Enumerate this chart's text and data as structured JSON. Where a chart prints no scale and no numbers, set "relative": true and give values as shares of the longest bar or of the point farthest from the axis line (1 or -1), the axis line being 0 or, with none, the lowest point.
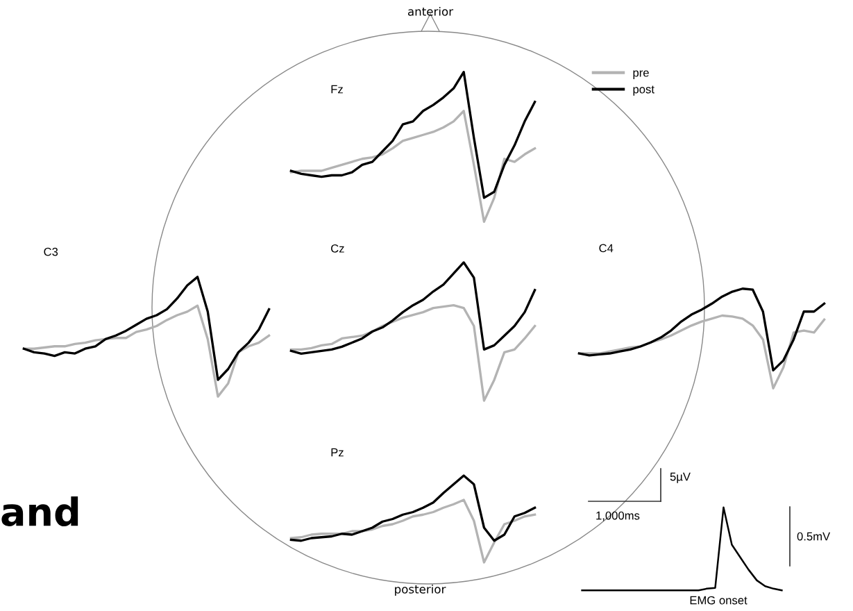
{
  "chart_data": [
    {
      "type": "line",
      "title": "Fz",
      "relative": true,
      "legend": "right",
      "categories": [
        null,
        null,
        null,
        null,
        null,
        null,
        null,
        null,
        null,
        null,
        null,
        null,
        null,
        null,
        null,
        null,
        null,
        null,
        null,
        null,
        null,
        null,
        null,
        null,
        null
      ],
      "series": [
        {
          "name": "pre",
          "color": "#b3b3b3",
          "values": [
            0.33,
            0.34,
            0.34,
            0.34,
            0.36,
            0.38,
            0.4,
            0.42,
            0.43,
            0.45,
            0.49,
            0.54,
            0.56,
            0.58,
            0.6,
            0.63,
            0.67,
            0.74,
            0.38,
            0,
            0.16,
            0.42,
            0.4,
            0.45,
            0.49
          ]
        },
        {
          "name": "post",
          "color": "#000000",
          "values": [
            0.34,
            0.32,
            0.31,
            0.3,
            0.31,
            0.31,
            0.33,
            0.38,
            0.4,
            0.47,
            0.54,
            0.65,
            0.67,
            0.74,
            0.78,
            0.83,
            0.89,
            1.0,
            0.56,
            0.16,
            0.2,
            0.38,
            0.51,
            0.67,
            0.8
          ]
        }
      ]
    },
    {
      "type": "line",
      "title": "C3",
      "relative": true,
      "categories": [
        null,
        null,
        null,
        null,
        null,
        null,
        null,
        null,
        null,
        null,
        null,
        null,
        null,
        null,
        null,
        null,
        null,
        null,
        null,
        null,
        null,
        null,
        null,
        null,
        null
      ],
      "series": [
        {
          "color": "#b3b3b3",
          "values": [
            0.4,
            0.4,
            0.41,
            0.42,
            0.42,
            0.44,
            0.45,
            0.47,
            0.48,
            0.49,
            0.49,
            0.54,
            0.56,
            0.59,
            0.64,
            0.68,
            0.71,
            0.76,
            0.48,
            0,
            0.11,
            0.37,
            0.42,
            0.45,
            0.51
          ]
        },
        {
          "color": "#000000",
          "values": [
            0.4,
            0.37,
            0.36,
            0.34,
            0.37,
            0.36,
            0.4,
            0.42,
            0.48,
            0.51,
            0.55,
            0.6,
            0.65,
            0.68,
            0.73,
            0.82,
            0.93,
            1.0,
            0.71,
            0.14,
            0.23,
            0.37,
            0.45,
            0.56,
            0.73
          ]
        }
      ]
    },
    {
      "type": "line",
      "title": "Cz",
      "relative": true,
      "annotations": [
        "anterior",
        "posterior",
        "and"
      ],
      "categories": [
        null,
        null,
        null,
        null,
        null,
        null,
        null,
        null,
        null,
        null,
        null,
        null,
        null,
        null,
        null,
        null,
        null,
        null,
        null,
        null,
        null,
        null,
        null,
        null,
        null
      ],
      "series": [
        {
          "color": "#b3b3b3",
          "values": [
            0.37,
            0.37,
            0.38,
            0.4,
            0.41,
            0.45,
            0.46,
            0.47,
            0.5,
            0.54,
            0.57,
            0.6,
            0.62,
            0.64,
            0.67,
            0.68,
            0.69,
            0.67,
            0.54,
            0,
            0.15,
            0.35,
            0.37,
            0.45,
            0.54
          ]
        },
        {
          "color": "#000000",
          "values": [
            0.36,
            0.34,
            0.35,
            0.36,
            0.37,
            0.39,
            0.42,
            0.45,
            0.5,
            0.53,
            0.58,
            0.64,
            0.69,
            0.73,
            0.79,
            0.84,
            0.92,
            1.0,
            0.89,
            0.37,
            0.4,
            0.47,
            0.54,
            0.64,
            0.8
          ]
        }
      ]
    },
    {
      "type": "line",
      "title": "C4",
      "relative": true,
      "categories": [
        null,
        null,
        null,
        null,
        null,
        null,
        null,
        null,
        null,
        null,
        null,
        null,
        null,
        null,
        null,
        null,
        null,
        null,
        null,
        null,
        null,
        null,
        null,
        null,
        null
      ],
      "series": [
        {
          "color": "#b3b3b3",
          "values": [
            0.35,
            0.35,
            0.35,
            0.37,
            0.39,
            0.41,
            0.42,
            0.46,
            0.49,
            0.53,
            0.58,
            0.63,
            0.67,
            0.7,
            0.73,
            0.72,
            0.7,
            0.63,
            0.49,
            0,
            0.21,
            0.56,
            0.58,
            0.56,
            0.69
          ]
        },
        {
          "color": "#000000",
          "values": [
            0.35,
            0.33,
            0.34,
            0.35,
            0.37,
            0.39,
            0.42,
            0.46,
            0.51,
            0.58,
            0.67,
            0.74,
            0.79,
            0.85,
            0.92,
            0.97,
            1.0,
            0.99,
            0.77,
            0.18,
            0.28,
            0.49,
            0.77,
            0.77,
            0.85
          ]
        }
      ]
    },
    {
      "type": "line",
      "title": "Pz",
      "relative": true,
      "categories": [
        null,
        null,
        null,
        null,
        null,
        null,
        null,
        null,
        null,
        null,
        null,
        null,
        null,
        null,
        null,
        null,
        null,
        null,
        null,
        null,
        null,
        null,
        null,
        null,
        null
      ],
      "series": [
        {
          "color": "#b3b3b3",
          "values": [
            0.28,
            0.29,
            0.32,
            0.33,
            0.33,
            0.33,
            0.36,
            0.36,
            0.38,
            0.42,
            0.44,
            0.48,
            0.53,
            0.55,
            0.58,
            0.63,
            0.67,
            0.72,
            0.48,
            0,
            0.23,
            0.44,
            0.48,
            0.53,
            0.55
          ]
        },
        {
          "color": "#000000",
          "values": [
            0.26,
            0.25,
            0.28,
            0.29,
            0.3,
            0.33,
            0.32,
            0.36,
            0.4,
            0.47,
            0.5,
            0.55,
            0.58,
            0.63,
            0.69,
            0.8,
            0.9,
            1.0,
            0.9,
            0.4,
            0.25,
            0.32,
            0.53,
            0.57,
            0.63
          ]
        }
      ]
    },
    {
      "type": "line",
      "relative": true,
      "annotations": [
        "EMG onset",
        "0.5mV",
        "5µV",
        "1,000ms"
      ],
      "categories": [
        null,
        null,
        null,
        null,
        null,
        null,
        null,
        null,
        null,
        null,
        null,
        null,
        null,
        null,
        null,
        null,
        null,
        null,
        null,
        null,
        null,
        null,
        null,
        null,
        null
      ],
      "series": [
        {
          "color": "#000000",
          "values": [
            0,
            0,
            0,
            0,
            0,
            0,
            0,
            0,
            0,
            0,
            0,
            0,
            0,
            0,
            0,
            0.02,
            0.03,
            1.0,
            0.55,
            0.4,
            0.25,
            0.12,
            0.05,
            0.02,
            0
          ]
        }
      ]
    }
  ]
}
